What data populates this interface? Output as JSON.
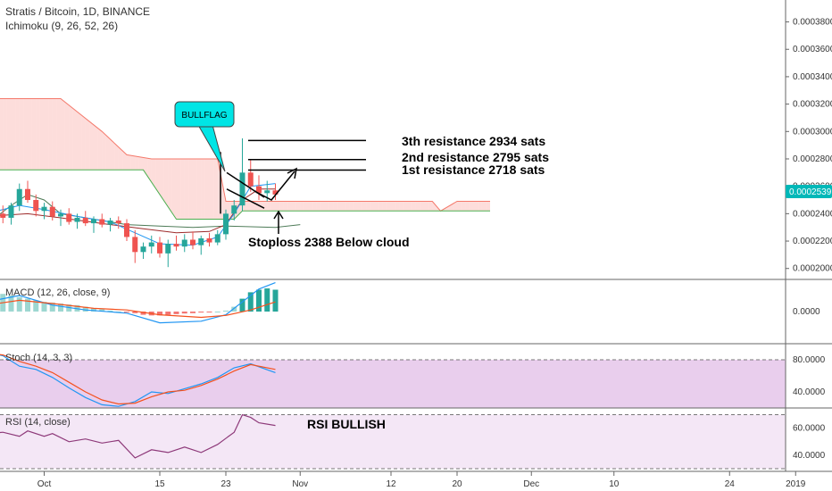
{
  "header": {
    "symbol_line": "Stratis / Bitcoin, 1D, BINANCE",
    "indicator_line": "Ichimoku (9, 26, 52, 26)"
  },
  "price_tag": {
    "value": "0.0002539",
    "color": "#00b8b8"
  },
  "chart_data": [
    {
      "type": "candlestick",
      "title": "Stratis / Bitcoin, 1D, BINANCE",
      "ylim": [
        0.000192,
        0.000396
      ],
      "y_ticks": [
        "0.0002000",
        "0.0002200",
        "0.0002400",
        "0.0002600",
        "0.0002800",
        "0.0003000",
        "0.0003200",
        "0.0003400",
        "0.0003600",
        "0.0003800"
      ],
      "y_tick_values": [
        0.0002,
        0.00022,
        0.00024,
        0.00026,
        0.00028,
        0.0003,
        0.00032,
        0.00034,
        0.00036,
        0.00038
      ],
      "x_ticks": [
        "Oct",
        "15",
        "23",
        "Nov",
        "12",
        "20",
        "Dec",
        "10",
        "24",
        "2019"
      ],
      "x_tick_days": [
        -2,
        12,
        20,
        29,
        40,
        48,
        57,
        67,
        81,
        89
      ],
      "candles": [
        {
          "d": -9,
          "o": 0.00024,
          "h": 0.000247,
          "l": 0.000234,
          "c": 0.000244
        },
        {
          "d": -8,
          "o": 0.000244,
          "h": 0.000248,
          "l": 0.000238,
          "c": 0.00024
        },
        {
          "d": -7,
          "o": 0.00024,
          "h": 0.000246,
          "l": 0.000233,
          "c": 0.000237
        },
        {
          "d": -6,
          "o": 0.000237,
          "h": 0.000248,
          "l": 0.000232,
          "c": 0.000246
        },
        {
          "d": -5,
          "o": 0.000246,
          "h": 0.000262,
          "l": 0.000242,
          "c": 0.000258
        },
        {
          "d": -4,
          "o": 0.000258,
          "h": 0.000264,
          "l": 0.000248,
          "c": 0.00025
        },
        {
          "d": -3,
          "o": 0.00025,
          "h": 0.000254,
          "l": 0.000238,
          "c": 0.000242
        },
        {
          "d": -2,
          "o": 0.000242,
          "h": 0.000248,
          "l": 0.000236,
          "c": 0.000245
        },
        {
          "d": -1,
          "o": 0.000245,
          "h": 0.000249,
          "l": 0.000235,
          "c": 0.000238
        },
        {
          "d": 0,
          "o": 0.000238,
          "h": 0.000243,
          "l": 0.000231,
          "c": 0.00024
        },
        {
          "d": 1,
          "o": 0.00024,
          "h": 0.000244,
          "l": 0.000232,
          "c": 0.000234
        },
        {
          "d": 2,
          "o": 0.000234,
          "h": 0.00024,
          "l": 0.000229,
          "c": 0.000237
        },
        {
          "d": 3,
          "o": 0.000237,
          "h": 0.000242,
          "l": 0.000231,
          "c": 0.000233
        },
        {
          "d": 4,
          "o": 0.000233,
          "h": 0.000238,
          "l": 0.000226,
          "c": 0.000236
        },
        {
          "d": 5,
          "o": 0.000236,
          "h": 0.00024,
          "l": 0.00023,
          "c": 0.000232
        },
        {
          "d": 6,
          "o": 0.000232,
          "h": 0.000237,
          "l": 0.000227,
          "c": 0.000235
        },
        {
          "d": 7,
          "o": 0.000235,
          "h": 0.000238,
          "l": 0.000229,
          "c": 0.000233
        },
        {
          "d": 8,
          "o": 0.000233,
          "h": 0.000236,
          "l": 0.00022,
          "c": 0.000223
        },
        {
          "d": 9,
          "o": 0.000223,
          "h": 0.000228,
          "l": 0.000204,
          "c": 0.000212
        },
        {
          "d": 10,
          "o": 0.000212,
          "h": 0.000219,
          "l": 0.000207,
          "c": 0.000216
        },
        {
          "d": 11,
          "o": 0.000216,
          "h": 0.000224,
          "l": 0.000211,
          "c": 0.000219
        },
        {
          "d": 12,
          "o": 0.000219,
          "h": 0.000223,
          "l": 0.000208,
          "c": 0.000211
        },
        {
          "d": 13,
          "o": 0.000211,
          "h": 0.000221,
          "l": 0.000201,
          "c": 0.000218
        },
        {
          "d": 14,
          "o": 0.000218,
          "h": 0.000224,
          "l": 0.000213,
          "c": 0.000216
        },
        {
          "d": 15,
          "o": 0.000216,
          "h": 0.000225,
          "l": 0.000212,
          "c": 0.000221
        },
        {
          "d": 16,
          "o": 0.000221,
          "h": 0.000227,
          "l": 0.000214,
          "c": 0.000217
        },
        {
          "d": 17,
          "o": 0.000217,
          "h": 0.000224,
          "l": 0.00021,
          "c": 0.000222
        },
        {
          "d": 18,
          "o": 0.000222,
          "h": 0.000226,
          "l": 0.000216,
          "c": 0.000219
        },
        {
          "d": 19,
          "o": 0.000219,
          "h": 0.000228,
          "l": 0.000217,
          "c": 0.000225
        },
        {
          "d": 20,
          "o": 0.000225,
          "h": 0.000243,
          "l": 0.000221,
          "c": 0.00024
        },
        {
          "d": 21,
          "o": 0.00024,
          "h": 0.00025,
          "l": 0.000235,
          "c": 0.000246
        },
        {
          "d": 22,
          "o": 0.000246,
          "h": 0.000295,
          "l": 0.000242,
          "c": 0.00027
        },
        {
          "d": 23,
          "o": 0.00027,
          "h": 0.000279,
          "l": 0.000256,
          "c": 0.00026
        },
        {
          "d": 24,
          "o": 0.00026,
          "h": 0.000268,
          "l": 0.00025,
          "c": 0.000255
        },
        {
          "d": 25,
          "o": 0.000255,
          "h": 0.000264,
          "l": 0.000249,
          "c": 0.000257
        },
        {
          "d": 26,
          "o": 0.000257,
          "h": 0.000262,
          "l": 0.00025,
          "c": 0.000254
        }
      ],
      "ichimoku": {
        "span_a": [
          [
            -9,
            0.000272
          ],
          [
            3,
            0.000272
          ],
          [
            10,
            0.000272
          ],
          [
            14,
            0.000236
          ],
          [
            21,
            0.000236
          ],
          [
            22,
            0.000242
          ],
          [
            26,
            0.000242
          ],
          [
            33,
            0.000242
          ],
          [
            40,
            0.000242
          ],
          [
            47,
            0.000242
          ],
          [
            48,
            0.000242
          ],
          [
            52,
            0.000242
          ]
        ],
        "span_b": [
          [
            -9,
            0.000324
          ],
          [
            -3,
            0.000324
          ],
          [
            0,
            0.000324
          ],
          [
            5,
            0.0003
          ],
          [
            8,
            0.000283
          ],
          [
            11,
            0.00028
          ],
          [
            19,
            0.00028
          ],
          [
            20,
            0.000249
          ],
          [
            28,
            0.000249
          ],
          [
            35,
            0.000249
          ],
          [
            45,
            0.000249
          ],
          [
            46,
            0.000242
          ],
          [
            48,
            0.000249
          ],
          [
            52,
            0.000249
          ]
        ],
        "conversion": [
          [
            -9,
            0.00024
          ],
          [
            -5,
            0.000246
          ],
          [
            -2,
            0.000243
          ],
          [
            2,
            0.000238
          ],
          [
            6,
            0.000234
          ],
          [
            9,
            0.000226
          ],
          [
            12,
            0.000218
          ],
          [
            16,
            0.000217
          ],
          [
            19,
            0.000223
          ],
          [
            21,
            0.00024
          ],
          [
            23,
            0.00026
          ],
          [
            26,
            0.000262
          ]
        ],
        "base": [
          [
            -9,
            0.000238
          ],
          [
            -4,
            0.00024
          ],
          [
            0,
            0.000237
          ],
          [
            6,
            0.000232
          ],
          [
            10,
            0.000229
          ],
          [
            14,
            0.000226
          ],
          [
            18,
            0.000227
          ],
          [
            20,
            0.000232
          ],
          [
            22,
            0.00025
          ],
          [
            24,
            0.000258
          ],
          [
            26,
            0.000258
          ]
        ],
        "lagging": [
          [
            -9,
            0.000232
          ],
          [
            -6,
            0.000246
          ],
          [
            -4,
            0.000254
          ],
          [
            -2,
            0.00025
          ],
          [
            0,
            0.00024
          ],
          [
            4,
            0.000236
          ],
          [
            8,
            0.000232
          ],
          [
            12,
            0.000231
          ],
          [
            16,
            0.00023
          ],
          [
            20,
            0.000231
          ],
          [
            26,
            0.00023
          ],
          [
            29,
            0.000232
          ]
        ]
      },
      "annotations": [
        {
          "text": "BULLFLAG",
          "kind": "callout"
        },
        {
          "text": "3th resistance 2934 sats",
          "value": 0.0002934
        },
        {
          "text": "2nd resistance 2795 sats",
          "value": 0.0002795
        },
        {
          "text": "1st resistance 2718 sats",
          "value": 0.0002718
        },
        {
          "text": "Stoploss 2388 Below cloud",
          "value": 0.0002388
        }
      ]
    },
    {
      "type": "histogram+line",
      "title": "MACD (12, 26, close, 9)",
      "ylim": [
        -1,
        1
      ],
      "y_ticks": [
        "0.0000"
      ],
      "y_tick_values": [
        0
      ],
      "histogram": [
        0.5,
        0.55,
        0.55,
        0.5,
        0.45,
        0.4,
        0.35,
        0.3,
        0.28,
        0.25,
        0.22,
        0.2,
        0.15,
        0.1,
        0.07,
        0.03,
        0,
        -0.02,
        -0.05,
        -0.1,
        -0.12,
        -0.12,
        -0.1,
        -0.08,
        -0.06,
        -0.05,
        -0.03,
        -0.02,
        0,
        0.03,
        0.15,
        0.4,
        0.6,
        0.68,
        0.72,
        0.68
      ],
      "macd": [
        [
          -9,
          0.3
        ],
        [
          -5,
          0.5
        ],
        [
          -1,
          0.2
        ],
        [
          3,
          0.05
        ],
        [
          8,
          -0.05
        ],
        [
          12,
          -0.35
        ],
        [
          17,
          -0.3
        ],
        [
          20,
          -0.1
        ],
        [
          22,
          0.3
        ],
        [
          24,
          0.7
        ],
        [
          26,
          0.9
        ]
      ],
      "signal": [
        [
          -9,
          0.2
        ],
        [
          -5,
          0.35
        ],
        [
          -1,
          0.25
        ],
        [
          4,
          0.1
        ],
        [
          8,
          0.05
        ],
        [
          12,
          -0.1
        ],
        [
          17,
          -0.18
        ],
        [
          20,
          -0.12
        ],
        [
          23,
          0.05
        ],
        [
          26,
          0.3
        ]
      ]
    },
    {
      "type": "line",
      "title": "Stoch (14, 3, 3)",
      "ylim": [
        20,
        100
      ],
      "bands": [
        20,
        80
      ],
      "y_ticks": [
        "80.0000",
        "40.0000"
      ],
      "y_tick_values": [
        80,
        40
      ],
      "k": [
        [
          -9,
          90
        ],
        [
          -7,
          85
        ],
        [
          -5,
          72
        ],
        [
          -3,
          68
        ],
        [
          -1,
          58
        ],
        [
          1,
          45
        ],
        [
          3,
          33
        ],
        [
          5,
          24
        ],
        [
          7,
          22
        ],
        [
          9,
          28
        ],
        [
          11,
          40
        ],
        [
          13,
          38
        ],
        [
          15,
          44
        ],
        [
          17,
          50
        ],
        [
          19,
          58
        ],
        [
          21,
          70
        ],
        [
          23,
          75
        ],
        [
          26,
          64
        ]
      ],
      "d": [
        [
          -9,
          88
        ],
        [
          -7,
          86
        ],
        [
          -5,
          78
        ],
        [
          -3,
          72
        ],
        [
          -1,
          64
        ],
        [
          1,
          52
        ],
        [
          3,
          40
        ],
        [
          5,
          30
        ],
        [
          7,
          25
        ],
        [
          9,
          26
        ],
        [
          11,
          34
        ],
        [
          13,
          40
        ],
        [
          15,
          42
        ],
        [
          17,
          48
        ],
        [
          19,
          56
        ],
        [
          21,
          66
        ],
        [
          23,
          74
        ],
        [
          26,
          68
        ]
      ]
    },
    {
      "type": "line",
      "title": "RSI (14, close)",
      "ylim": [
        28,
        75
      ],
      "bands": [
        30,
        70
      ],
      "y_ticks": [
        "60.0000",
        "40.0000"
      ],
      "y_tick_values": [
        60,
        40
      ],
      "values": [
        [
          -9,
          56
        ],
        [
          -7,
          57
        ],
        [
          -5,
          54
        ],
        [
          -4,
          58
        ],
        [
          -2,
          54
        ],
        [
          -1,
          56
        ],
        [
          1,
          50
        ],
        [
          3,
          52
        ],
        [
          5,
          49
        ],
        [
          7,
          51
        ],
        [
          9,
          38
        ],
        [
          11,
          44
        ],
        [
          13,
          42
        ],
        [
          15,
          46
        ],
        [
          17,
          42
        ],
        [
          19,
          48
        ],
        [
          21,
          57
        ],
        [
          22,
          70
        ],
        [
          23,
          68
        ],
        [
          24,
          64
        ],
        [
          26,
          62
        ]
      ],
      "annotation": "RSI BULLISH"
    }
  ]
}
